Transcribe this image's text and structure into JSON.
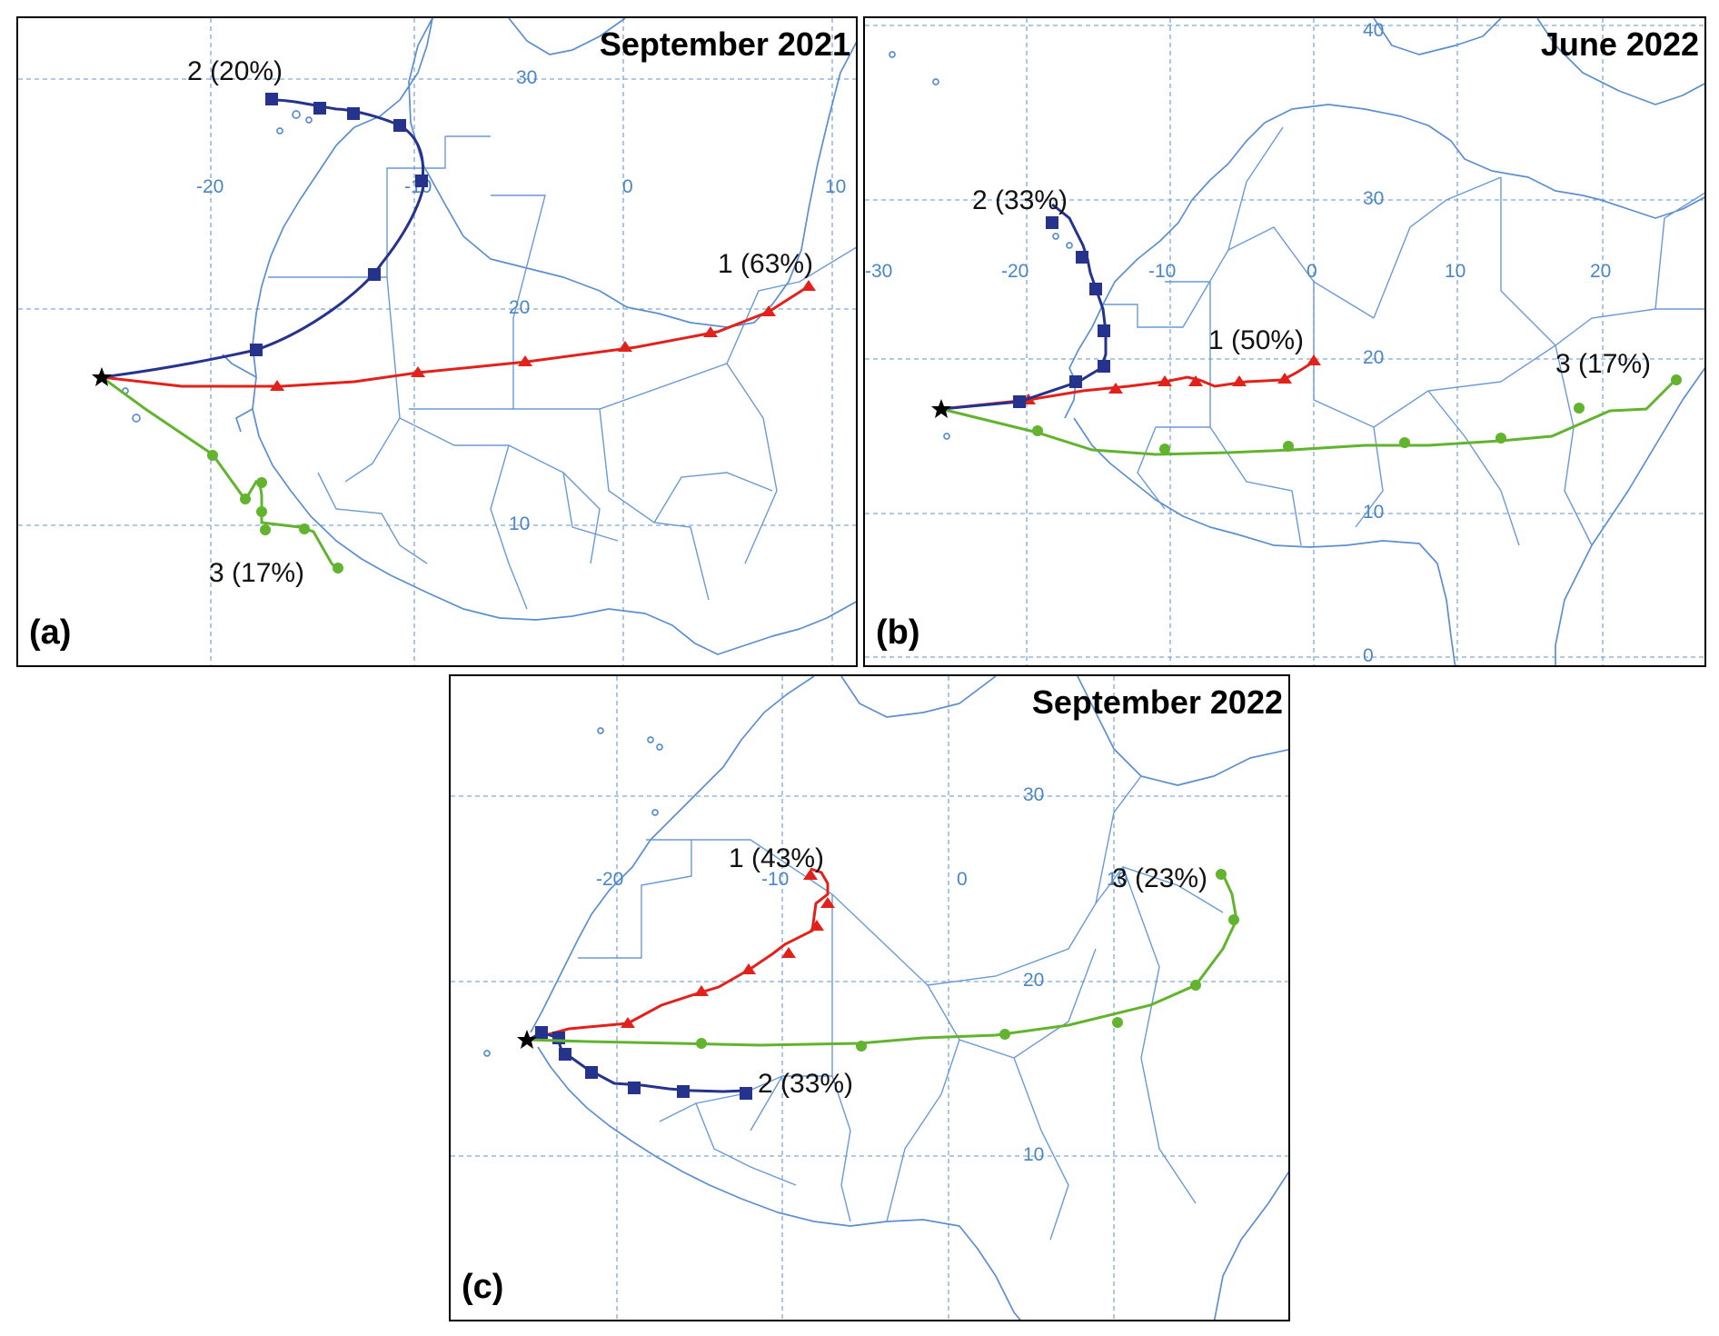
{
  "panels": [
    {
      "id": "a",
      "title": "September 2021",
      "label": "(a)",
      "ticks": [
        {
          "text": "30",
          "kind": "lat"
        },
        {
          "text": "20",
          "kind": "lat"
        },
        {
          "text": "10",
          "kind": "lat"
        },
        {
          "text": "-20",
          "kind": "lon"
        },
        {
          "text": "-10",
          "kind": "lon"
        },
        {
          "text": "0",
          "kind": "lon"
        },
        {
          "text": "10",
          "kind": "lon"
        }
      ],
      "trajectories": [
        {
          "label": "1 (63%)",
          "color": "#e3211b",
          "marker": "triangle"
        },
        {
          "label": "2 (20%)",
          "color": "#25338c",
          "marker": "square"
        },
        {
          "label": "3 (17%)",
          "color": "#62b32e",
          "marker": "circle"
        }
      ]
    },
    {
      "id": "b",
      "title": "June 2022",
      "label": "(b)",
      "ticks": [
        {
          "text": "40",
          "kind": "lat"
        },
        {
          "text": "30",
          "kind": "lat"
        },
        {
          "text": "20",
          "kind": "lat"
        },
        {
          "text": "10",
          "kind": "lat"
        },
        {
          "text": "0",
          "kind": "lat"
        },
        {
          "text": "-30",
          "kind": "lon"
        },
        {
          "text": "-20",
          "kind": "lon"
        },
        {
          "text": "-10",
          "kind": "lon"
        },
        {
          "text": "0",
          "kind": "lon"
        },
        {
          "text": "10",
          "kind": "lon"
        },
        {
          "text": "20",
          "kind": "lon"
        }
      ],
      "trajectories": [
        {
          "label": "1 (50%)",
          "color": "#e3211b",
          "marker": "triangle"
        },
        {
          "label": "2 (33%)",
          "color": "#25338c",
          "marker": "square"
        },
        {
          "label": "3 (17%)",
          "color": "#62b32e",
          "marker": "circle"
        }
      ]
    },
    {
      "id": "c",
      "title": "September 2022",
      "label": "(c)",
      "ticks": [
        {
          "text": "30",
          "kind": "lat"
        },
        {
          "text": "20",
          "kind": "lat"
        },
        {
          "text": "10",
          "kind": "lat"
        },
        {
          "text": "-20",
          "kind": "lon"
        },
        {
          "text": "-10",
          "kind": "lon"
        },
        {
          "text": "0",
          "kind": "lon"
        },
        {
          "text": "10",
          "kind": "lon"
        }
      ],
      "trajectories": [
        {
          "label": "1 (43%)",
          "color": "#e3211b",
          "marker": "triangle"
        },
        {
          "label": "2 (33%)",
          "color": "#25338c",
          "marker": "square"
        },
        {
          "label": "3 (23%)",
          "color": "#62b32e",
          "marker": "circle"
        }
      ]
    }
  ],
  "colors": {
    "map_lines": "#5b8fd0",
    "tick_labels": "#4a86c6",
    "origin_marker": "#000000"
  }
}
